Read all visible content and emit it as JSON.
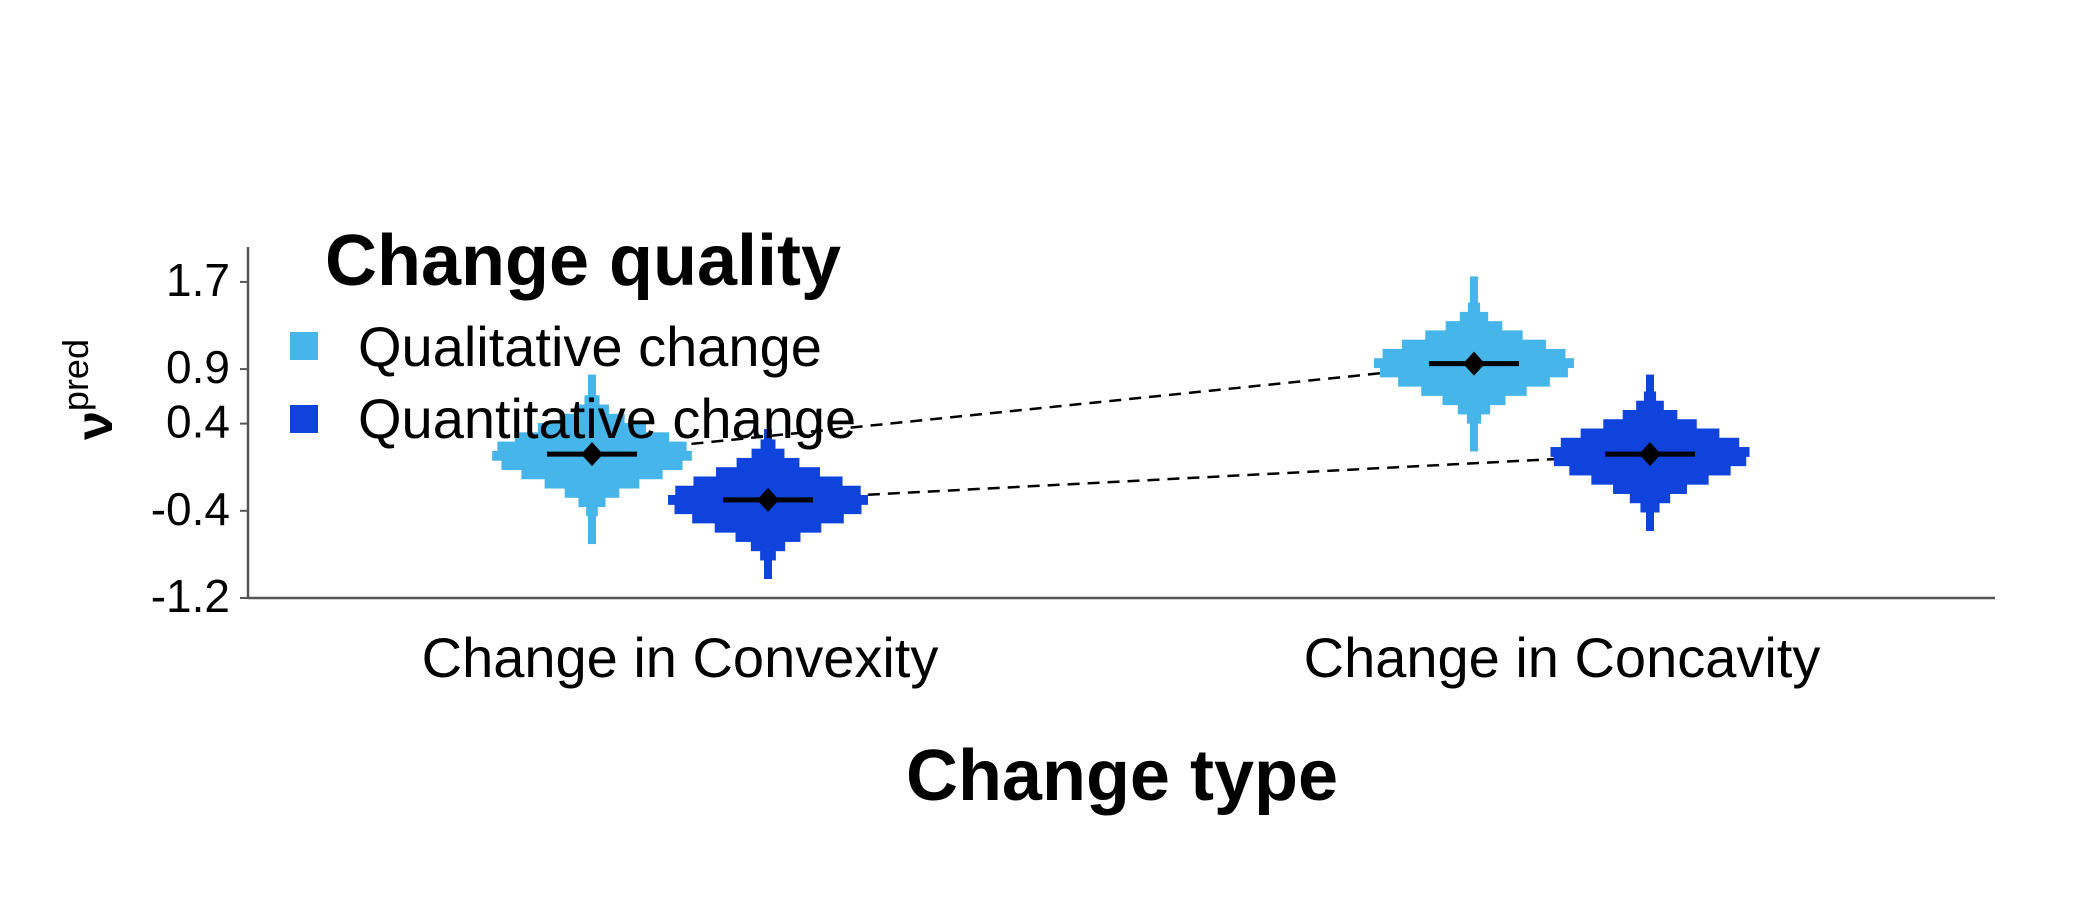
{
  "chart_data": {
    "type": "violin",
    "title": "",
    "xlabel": "Change type",
    "ylabel": "ν",
    "ylabel_superscript": "pred",
    "categories": [
      "Change in Convexity",
      "Change in Concavity"
    ],
    "yticks": [
      -1.2,
      -0.4,
      0.4,
      0.9,
      1.7
    ],
    "ytick_labels": [
      "-1.2",
      "-0.4",
      "0.4",
      "0.9",
      "1.7"
    ],
    "ylim": [
      -1.2,
      2.2
    ],
    "legend": {
      "title": "Change quality",
      "position": "top-left",
      "entries": [
        {
          "label": "Qualitative change",
          "color": "#45b5ea"
        },
        {
          "label": "Quantitative change",
          "color": "#0f43dc"
        }
      ]
    },
    "series": [
      {
        "name": "Qualitative change",
        "color": "#45b5ea",
        "points": [
          {
            "category": "Change in Convexity",
            "mean": 0.12,
            "interval": [
              -0.05,
              0.3
            ],
            "min": -0.7,
            "max": 0.85
          },
          {
            "category": "Change in Concavity",
            "mean": 0.95,
            "interval": [
              0.78,
              1.13
            ],
            "min": 0.15,
            "max": 1.75
          }
        ]
      },
      {
        "name": "Quantitative change",
        "color": "#0f43dc",
        "points": [
          {
            "category": "Change in Convexity",
            "mean": -0.3,
            "interval": [
              -0.48,
              -0.12
            ],
            "min": -1.02,
            "max": 0.35
          },
          {
            "category": "Change in Concavity",
            "mean": 0.12,
            "interval": [
              -0.06,
              0.3
            ],
            "min": -0.58,
            "max": 0.85
          }
        ]
      }
    ],
    "connectors": "dashed line between means of the same change quality",
    "grid": false
  }
}
